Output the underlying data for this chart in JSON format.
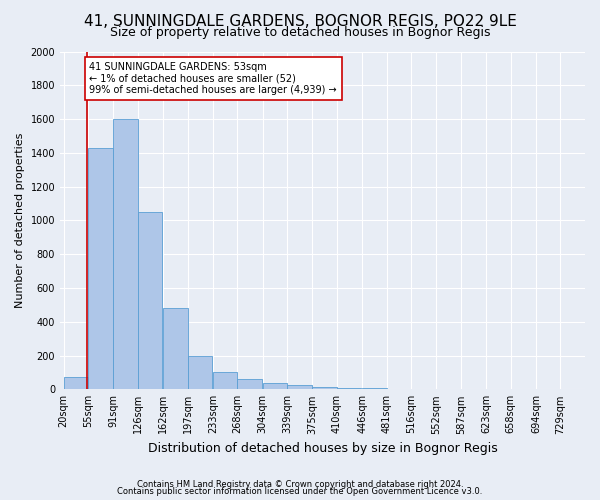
{
  "title1": "41, SUNNINGDALE GARDENS, BOGNOR REGIS, PO22 9LE",
  "title2": "Size of property relative to detached houses in Bognor Regis",
  "xlabel": "Distribution of detached houses by size in Bognor Regis",
  "ylabel": "Number of detached properties",
  "footer1": "Contains HM Land Registry data © Crown copyright and database right 2024.",
  "footer2": "Contains public sector information licensed under the Open Government Licence v3.0.",
  "bar_left_edges": [
    20,
    55,
    91,
    126,
    162,
    197,
    233,
    268,
    304,
    339,
    375,
    410,
    446,
    481,
    516,
    552,
    587,
    623,
    658,
    694
  ],
  "bar_heights": [
    75,
    1430,
    1600,
    1050,
    480,
    200,
    105,
    60,
    35,
    25,
    15,
    10,
    5,
    3,
    2,
    1,
    0,
    0,
    0,
    0
  ],
  "bin_width": 35,
  "bar_color": "#aec6e8",
  "bar_edge_color": "#5a9fd4",
  "property_line_x": 53,
  "property_line_color": "#cc0000",
  "annotation_text": "41 SUNNINGDALE GARDENS: 53sqm\n← 1% of detached houses are smaller (52)\n99% of semi-detached houses are larger (4,939) →",
  "annotation_bbox_color": "#ffffff",
  "annotation_bbox_edge": "#cc0000",
  "ylim": [
    0,
    2000
  ],
  "yticks": [
    0,
    200,
    400,
    600,
    800,
    1000,
    1200,
    1400,
    1600,
    1800,
    2000
  ],
  "bg_color": "#e8edf5",
  "plot_bg_color": "#e8edf5",
  "grid_color": "#ffffff",
  "title1_fontsize": 11,
  "title2_fontsize": 9,
  "ylabel_fontsize": 8,
  "xlabel_fontsize": 9,
  "tick_fontsize": 7,
  "annotation_fontsize": 7,
  "footer_fontsize": 6,
  "tick_labels": [
    "20sqm",
    "55sqm",
    "91sqm",
    "126sqm",
    "162sqm",
    "197sqm",
    "233sqm",
    "268sqm",
    "304sqm",
    "339sqm",
    "375sqm",
    "410sqm",
    "446sqm",
    "481sqm",
    "516sqm",
    "552sqm",
    "587sqm",
    "623sqm",
    "658sqm",
    "694sqm",
    "729sqm"
  ],
  "xlim_min": 15,
  "xlim_max": 764
}
